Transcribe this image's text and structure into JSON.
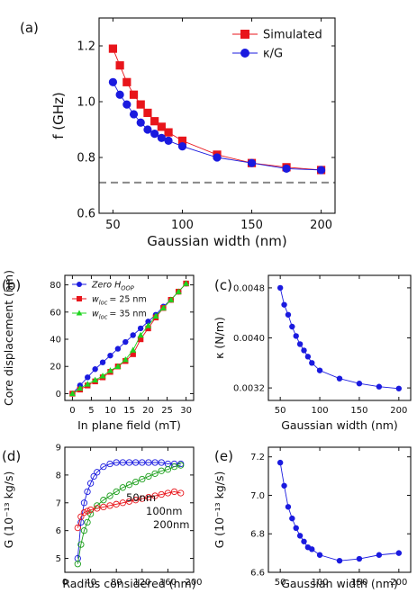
{
  "chart_data": [
    {
      "id": "a",
      "panel_label": "(a)",
      "type": "line",
      "xlabel": "Gaussian width (nm)",
      "ylabel": "f (GHz)",
      "xlim": [
        40,
        210
      ],
      "ylim": [
        0.6,
        1.3
      ],
      "xticks": [
        "50",
        "100",
        "150",
        "200"
      ],
      "yticks": [
        "0.6",
        "0.8",
        "1.0",
        "1.2"
      ],
      "legend_position": "top-right",
      "reference_line": {
        "y": 0.71,
        "style": "dashed",
        "color": "#888888"
      },
      "series": [
        {
          "name": "Simulated",
          "marker": "square",
          "color": "#e8151b",
          "x": [
            50,
            55,
            60,
            65,
            70,
            75,
            80,
            85,
            90,
            100,
            125,
            150,
            175,
            200
          ],
          "y": [
            1.19,
            1.13,
            1.07,
            1.025,
            0.99,
            0.96,
            0.93,
            0.91,
            0.89,
            0.86,
            0.81,
            0.78,
            0.765,
            0.755
          ]
        },
        {
          "name": "κ/G",
          "marker": "circle",
          "color": "#1a1adf",
          "x": [
            50,
            55,
            60,
            65,
            70,
            75,
            80,
            85,
            90,
            100,
            125,
            150,
            175,
            200
          ],
          "y": [
            1.07,
            1.025,
            0.99,
            0.955,
            0.925,
            0.9,
            0.885,
            0.87,
            0.86,
            0.84,
            0.8,
            0.78,
            0.76,
            0.755
          ]
        }
      ]
    },
    {
      "id": "b",
      "panel_label": "(b)",
      "type": "line",
      "xlabel": "In plane field (mT)",
      "ylabel": "Core displacement (nm)",
      "xlim": [
        -2,
        32
      ],
      "ylim": [
        -5,
        87
      ],
      "xticks": [
        "0",
        "5",
        "10",
        "15",
        "20",
        "25",
        "30"
      ],
      "yticks": [
        "0",
        "20",
        "40",
        "60",
        "80"
      ],
      "legend_position": "top-left",
      "series": [
        {
          "name": "Zero H",
          "name_sub": "OOP",
          "marker": "circle",
          "color": "#1a1adf",
          "x": [
            0,
            2,
            4,
            6,
            8,
            10,
            12,
            14,
            16,
            18,
            20,
            22,
            24,
            26,
            28,
            30
          ],
          "y": [
            0,
            6,
            12,
            18,
            23,
            28,
            33,
            38,
            43,
            48,
            53,
            58,
            64,
            69,
            75,
            81
          ]
        },
        {
          "name": "w",
          "name_sub": "loc",
          "name_suffix": "= 25 nm",
          "marker": "square",
          "color": "#e8151b",
          "x": [
            0,
            2,
            4,
            6,
            8,
            10,
            12,
            14,
            16,
            18,
            20,
            22,
            24,
            26,
            28,
            30
          ],
          "y": [
            0,
            3,
            6,
            9,
            12,
            16,
            20,
            24,
            29,
            40,
            48,
            56,
            63,
            69,
            75,
            81
          ]
        },
        {
          "name": "w",
          "name_sub": "loc",
          "name_suffix": "= 35 nm",
          "marker": "triangle",
          "color": "#1ed41e",
          "x": [
            0,
            2,
            4,
            6,
            8,
            10,
            12,
            14,
            16,
            18,
            20,
            22,
            24,
            26,
            28,
            30
          ],
          "y": [
            0,
            4,
            7,
            10,
            13,
            17,
            20,
            25,
            32,
            43,
            50,
            57,
            63,
            69,
            75,
            81
          ]
        }
      ]
    },
    {
      "id": "c",
      "panel_label": "(c)",
      "type": "line",
      "xlabel": "Gaussian width (nm)",
      "ylabel": "κ (N/m)",
      "xlim": [
        35,
        215
      ],
      "ylim": [
        0.003,
        0.005
      ],
      "xticks": [
        "50",
        "100",
        "150",
        "200"
      ],
      "yticks": [
        "0.0032",
        "0.0040",
        "0.0048"
      ],
      "series": [
        {
          "name": "",
          "marker": "circle",
          "color": "#1a1adf",
          "x": [
            50,
            55,
            60,
            65,
            70,
            75,
            80,
            85,
            90,
            100,
            125,
            150,
            175,
            200
          ],
          "y": [
            0.0048,
            0.00453,
            0.00437,
            0.00418,
            0.00403,
            0.0039,
            0.0038,
            0.0037,
            0.0036,
            0.00348,
            0.00335,
            0.00327,
            0.00322,
            0.00319
          ]
        }
      ]
    },
    {
      "id": "d",
      "panel_label": "(d)",
      "type": "line",
      "xlabel": "Radius considered (nm)",
      "ylabel": "G (10⁻¹³ kg/s)",
      "xlim": [
        0,
        200
      ],
      "ylim": [
        4.5,
        9.0
      ],
      "xticks": [
        "0",
        "40",
        "80",
        "120",
        "160",
        "200"
      ],
      "yticks": [
        "5",
        "6",
        "7",
        "8",
        "9"
      ],
      "annotations": [
        "50nm",
        "100nm",
        "200nm"
      ],
      "series": [
        {
          "name": "50nm",
          "marker": "open-circle",
          "color": "#1a1adf",
          "x": [
            20,
            25,
            30,
            35,
            40,
            45,
            50,
            60,
            70,
            80,
            90,
            100,
            110,
            120,
            130,
            140,
            150,
            160,
            170,
            180
          ],
          "y": [
            5.0,
            6.3,
            7.0,
            7.4,
            7.7,
            7.95,
            8.1,
            8.3,
            8.4,
            8.45,
            8.45,
            8.45,
            8.45,
            8.45,
            8.45,
            8.45,
            8.45,
            8.4,
            8.4,
            8.4
          ]
        },
        {
          "name": "100nm",
          "marker": "open-circle",
          "color": "#1a9e1a",
          "x": [
            20,
            25,
            30,
            35,
            40,
            50,
            60,
            70,
            80,
            90,
            100,
            110,
            120,
            130,
            140,
            150,
            160,
            170,
            180
          ],
          "y": [
            4.8,
            5.5,
            6.0,
            6.3,
            6.6,
            6.9,
            7.1,
            7.25,
            7.4,
            7.55,
            7.65,
            7.75,
            7.85,
            7.95,
            8.05,
            8.15,
            8.2,
            8.3,
            8.35
          ]
        },
        {
          "name": "200nm",
          "marker": "open-circle",
          "color": "#e8151b",
          "x": [
            20,
            25,
            30,
            35,
            40,
            50,
            60,
            70,
            80,
            90,
            100,
            110,
            120,
            130,
            140,
            150,
            160,
            170,
            180
          ],
          "y": [
            6.1,
            6.5,
            6.65,
            6.7,
            6.75,
            6.8,
            6.85,
            6.9,
            6.95,
            7.0,
            7.05,
            7.1,
            7.15,
            7.2,
            7.25,
            7.3,
            7.35,
            7.4,
            7.35
          ]
        }
      ]
    },
    {
      "id": "e",
      "panel_label": "(e)",
      "type": "line",
      "xlabel": "Gaussian width (nm)",
      "ylabel": "G (10⁻¹³ kg/s)",
      "xlim": [
        35,
        215
      ],
      "ylim": [
        6.6,
        7.25
      ],
      "xticks": [
        "50",
        "100",
        "150",
        "200"
      ],
      "yticks": [
        "6.6",
        "6.8",
        "7.0",
        "7.2"
      ],
      "series": [
        {
          "name": "",
          "marker": "circle",
          "color": "#1a1adf",
          "x": [
            50,
            55,
            60,
            65,
            70,
            75,
            80,
            85,
            90,
            100,
            125,
            150,
            175,
            200
          ],
          "y": [
            7.17,
            7.05,
            6.94,
            6.88,
            6.83,
            6.79,
            6.76,
            6.73,
            6.72,
            6.69,
            6.66,
            6.67,
            6.69,
            6.7
          ]
        }
      ]
    }
  ]
}
